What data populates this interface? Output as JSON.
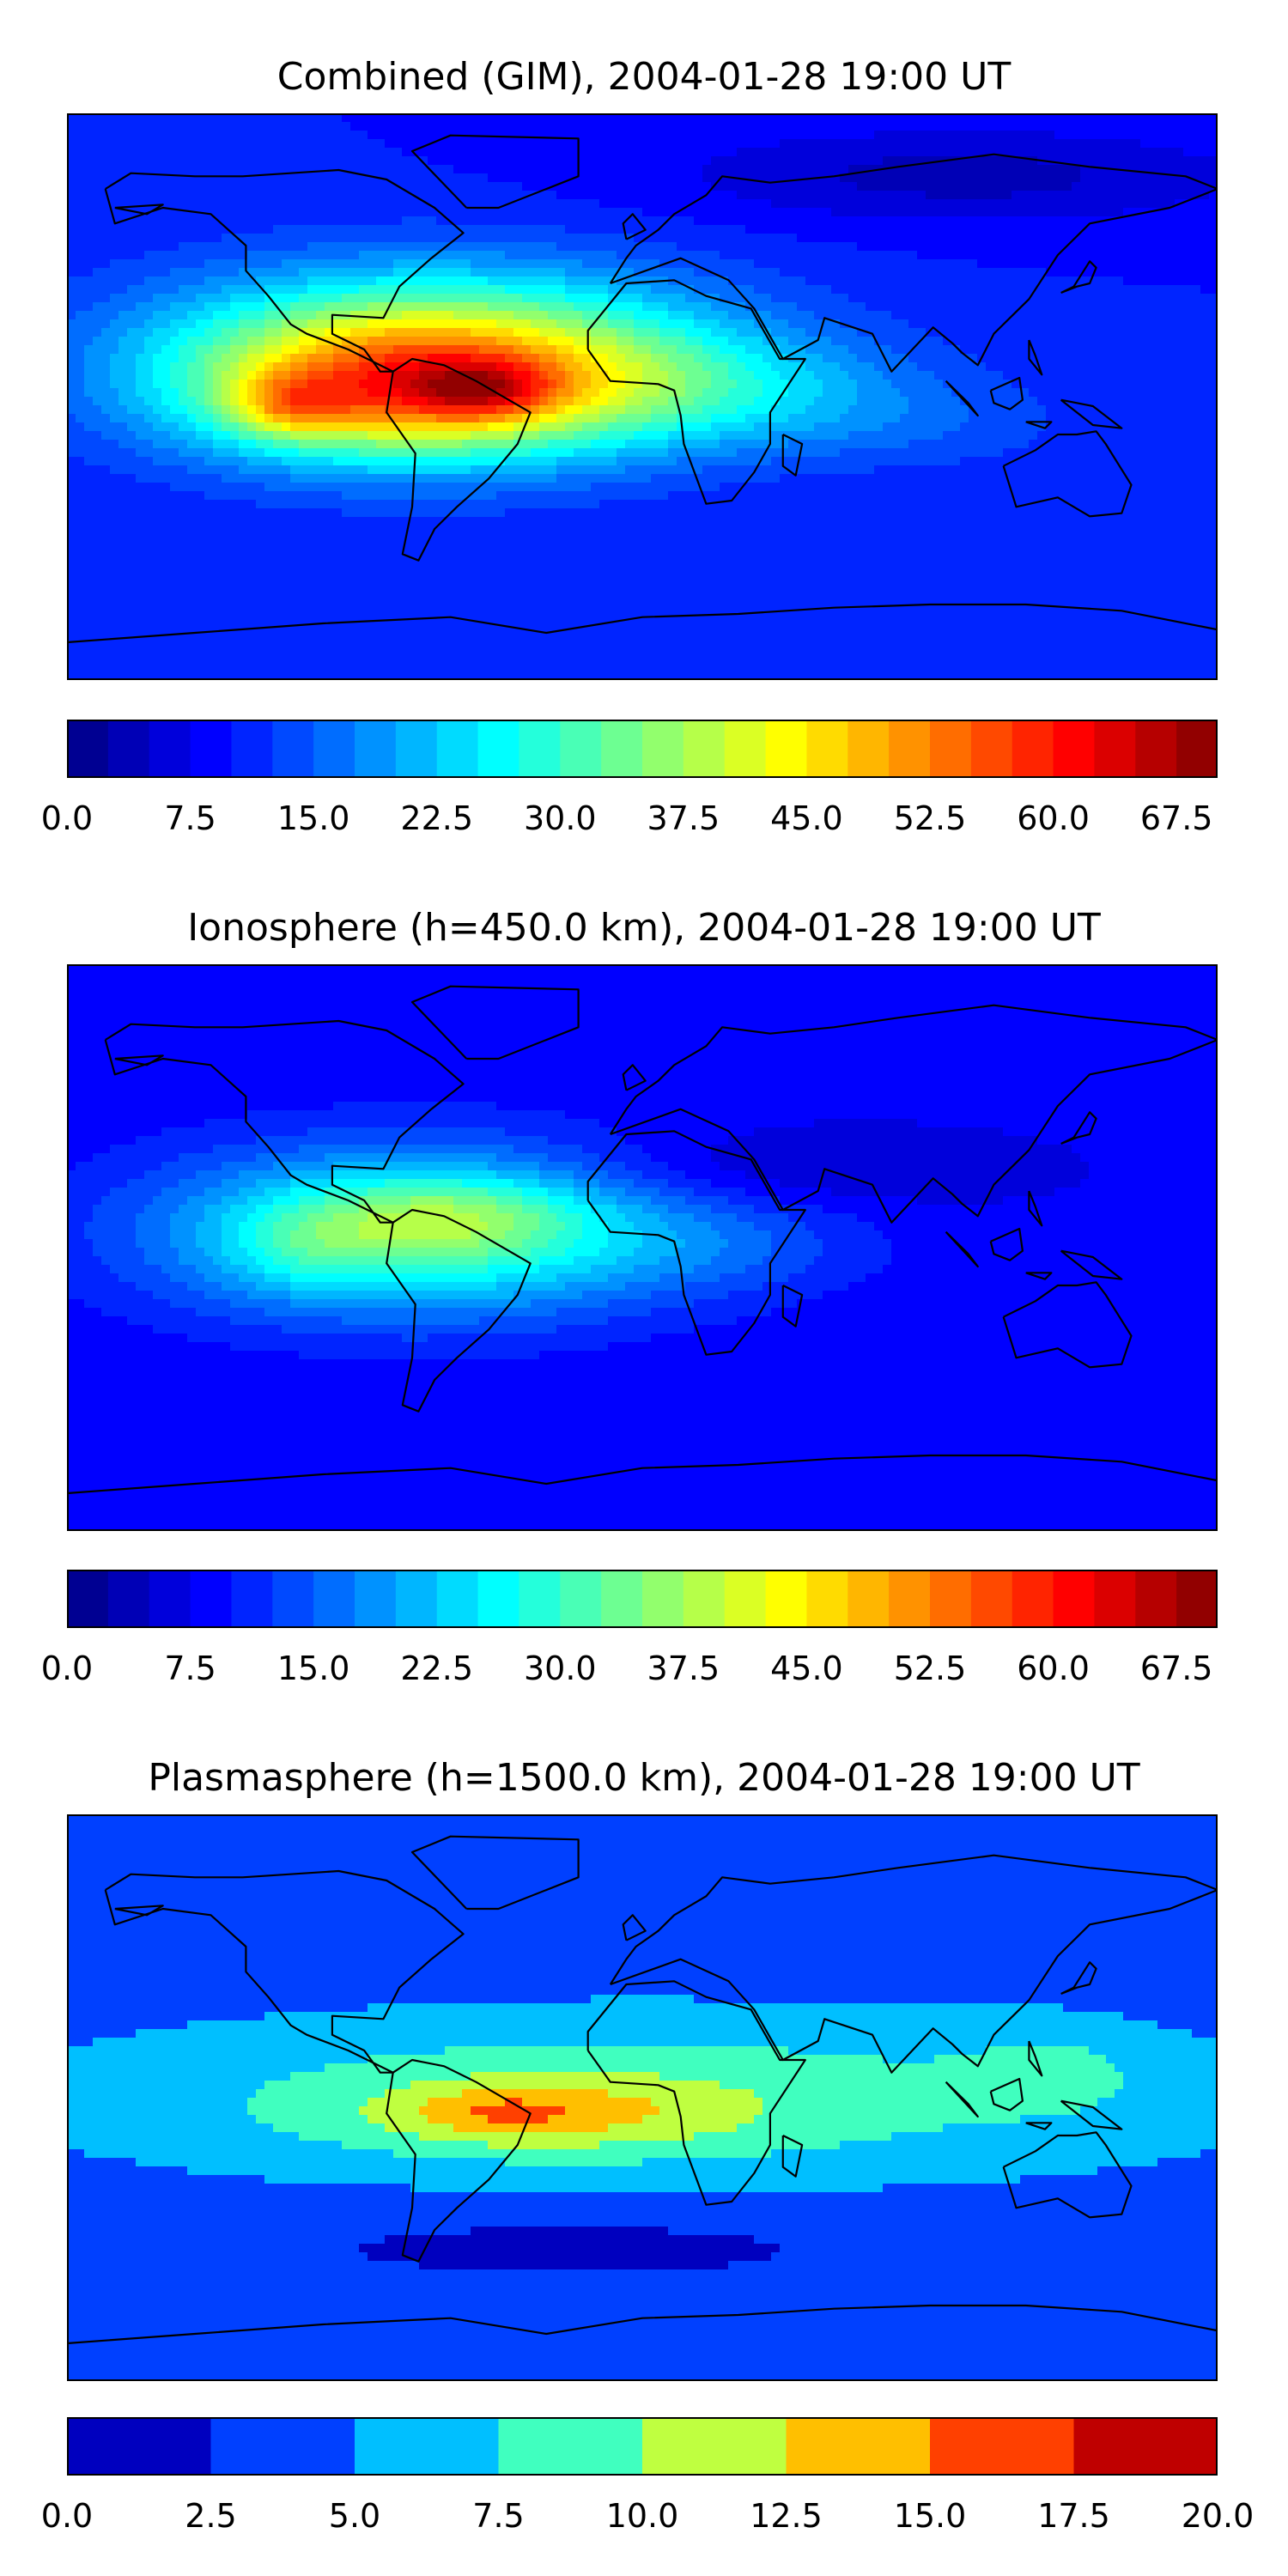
{
  "chart_data": [
    {
      "type": "heatmap",
      "title": "Combined (GIM), 2004-01-28 19:00 UT",
      "colormap": "jet",
      "levels": 28,
      "zlim": [
        0.0,
        70.0
      ],
      "colorbar_ticks": [
        "0.0",
        "7.5",
        "15.0",
        "22.5",
        "30.0",
        "37.5",
        "45.0",
        "52.5",
        "60.0",
        "67.5"
      ],
      "colorbar_tick_values": [
        0.0,
        7.5,
        15.0,
        22.5,
        30.0,
        37.5,
        45.0,
        52.5,
        60.0,
        67.5
      ],
      "background_value": 10,
      "features": [
        {
          "lon": -65,
          "lat": 10,
          "rlon": 85,
          "rlat": 28,
          "value": 38
        },
        {
          "lon": -80,
          "lat": 0,
          "rlon": 55,
          "rlat": 20,
          "value": 14
        },
        {
          "lon": -110,
          "lat": -3,
          "rlon": 18,
          "rlat": 10,
          "value": 13
        },
        {
          "lon": -50,
          "lat": 2,
          "rlon": 22,
          "rlat": 9,
          "value": 12
        },
        {
          "lon": 20,
          "lat": 2,
          "rlon": 70,
          "rlat": 18,
          "value": 9
        },
        {
          "lon": 90,
          "lat": -10,
          "rlon": 50,
          "rlat": 14,
          "value": 3
        },
        {
          "lon": 100,
          "lat": 70,
          "rlon": 90,
          "rlat": 15,
          "value": -6
        }
      ]
    },
    {
      "type": "heatmap",
      "title": "Ionosphere  (h=450.0 km), 2004-01-28 19:00 UT",
      "colormap": "jet",
      "levels": 28,
      "zlim": [
        0.0,
        70.0
      ],
      "colorbar_ticks": [
        "0.0",
        "7.5",
        "15.0",
        "22.5",
        "30.0",
        "37.5",
        "45.0",
        "52.5",
        "60.0",
        "67.5"
      ],
      "colorbar_tick_values": [
        0.0,
        7.5,
        15.0,
        22.5,
        30.0,
        37.5,
        45.0,
        52.5,
        60.0,
        67.5
      ],
      "background_value": 8,
      "features": [
        {
          "lon": -70,
          "lat": 5,
          "rlon": 80,
          "rlat": 26,
          "value": 24
        },
        {
          "lon": -60,
          "lat": 10,
          "rlon": 40,
          "rlat": 12,
          "value": 8
        },
        {
          "lon": -105,
          "lat": 0,
          "rlon": 25,
          "rlat": 14,
          "value": 5
        },
        {
          "lon": 25,
          "lat": 0,
          "rlon": 50,
          "rlat": 15,
          "value": 4
        },
        {
          "lon": 40,
          "lat": 25,
          "rlon": 70,
          "rlat": 12,
          "value": -4
        }
      ]
    },
    {
      "type": "heatmap",
      "title": "Plasmasphere (h=1500.0 km), 2004-01-28 19:00 UT",
      "colormap": "jet",
      "levels": 8,
      "zlim": [
        0.0,
        20.0
      ],
      "colorbar_ticks": [
        "0.0",
        "2.5",
        "5.0",
        "7.5",
        "10.0",
        "12.5",
        "15.0",
        "17.5",
        "20.0"
      ],
      "colorbar_tick_values": [
        0.0,
        2.5,
        5.0,
        7.5,
        10.0,
        12.5,
        15.0,
        17.5,
        20.0
      ],
      "background_value": 3,
      "features": [
        {
          "lon": 0,
          "lat": 0,
          "rlon": 200,
          "rlat": 30,
          "value": 6
        },
        {
          "lon": -30,
          "lat": -5,
          "rlon": 60,
          "rlat": 12,
          "value": 5
        },
        {
          "lon": -45,
          "lat": -5,
          "rlon": 25,
          "rlat": 7,
          "value": 2.5
        },
        {
          "lon": 130,
          "lat": 10,
          "rlon": 30,
          "rlat": 15,
          "value": 2
        },
        {
          "lon": -20,
          "lat": -45,
          "rlon": 100,
          "rlat": 12,
          "value": -1.5
        }
      ]
    }
  ]
}
